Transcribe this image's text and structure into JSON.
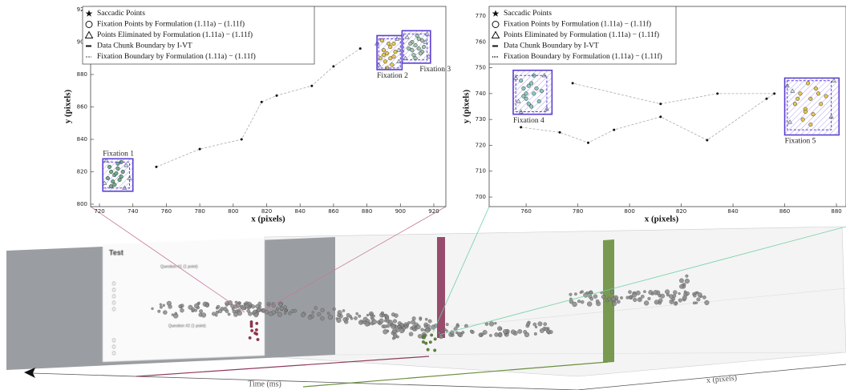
{
  "chart_data": [
    {
      "type": "scatter",
      "xlabel": "x (pixels)",
      "ylabel": "y (pixels)",
      "xlim": [
        714.7,
        927.2
      ],
      "xticks": [
        720,
        740,
        760,
        780,
        800,
        820,
        840,
        860,
        880,
        900,
        920
      ],
      "ylim": [
        798.5,
        922
      ],
      "yticks": [
        800,
        820,
        840,
        860,
        880,
        900,
        920
      ],
      "legend": [
        "Saccadic Points",
        "Fixation Points by Formulation (1.11a) − (1.11f)",
        "Points Eliminated by Formulation (1.11a) − (1.11f)",
        "Data Chunk Boundary by I-VT",
        "Fixation Boundary by Formulation (1.11a) − (1.11f)"
      ],
      "boundary_color": "#5b3fd0",
      "saccades": {
        "x": [
          754,
          780,
          805,
          817,
          826,
          847,
          860,
          876
        ],
        "y": [
          823,
          834,
          840,
          863,
          867,
          873,
          885,
          896
        ]
      },
      "clusters": [
        {
          "label": "Fixation 1",
          "color": "#6fae8a",
          "x": [
            725,
            727,
            729,
            731,
            733,
            728,
            730,
            732,
            726,
            734,
            729,
            731,
            727,
            733
          ],
          "y": [
            816,
            820,
            818,
            822,
            817,
            814,
            819,
            815,
            823,
            820,
            812,
            825,
            811,
            826
          ],
          "elim_x": [
            723,
            736,
            738,
            724,
            735
          ],
          "elim_y": [
            813,
            824,
            816,
            827,
            810
          ],
          "chunk": {
            "x": [
              722,
              740
            ],
            "y": [
              808,
              828
            ]
          },
          "boundary": {
            "x": [
              722,
              738
            ],
            "y": [
              810,
              826
            ]
          }
        },
        {
          "label": "Fixation 2",
          "color": "#e8c84a",
          "x": [
            888,
            890,
            892,
            894,
            896,
            891,
            893,
            895,
            889,
            897,
            892,
            890,
            894,
            896
          ],
          "y": [
            890,
            895,
            893,
            897,
            891,
            888,
            899,
            886,
            901,
            894,
            884,
            892,
            890,
            899
          ],
          "elim_x": [
            887,
            898,
            899,
            886,
            899
          ],
          "elim_y": [
            886,
            902,
            888,
            899,
            895
          ],
          "chunk": {
            "x": [
              886,
              901
            ],
            "y": [
              883,
              904
            ]
          },
          "boundary": {
            "x": [
              887,
              900
            ],
            "y": [
              884,
              902
            ]
          }
        },
        {
          "label": "Fixation 3",
          "color": "#9fc9a8",
          "x": [
            905,
            907,
            909,
            911,
            913,
            908,
            910,
            912,
            906,
            914,
            909,
            911,
            907,
            913
          ],
          "y": [
            896,
            900,
            898,
            902,
            894,
            892,
            904,
            893,
            899,
            897,
            890,
            896,
            895,
            901
          ],
          "elim_x": [
            903,
            916,
            917,
            904,
            915
          ],
          "elim_y": [
            890,
            905,
            891,
            903,
            900
          ],
          "chunk": {
            "x": [
              901,
              918
            ],
            "y": [
              887,
              907
            ]
          },
          "boundary": {
            "x": [
              902,
              916
            ],
            "y": [
              889,
              905
            ]
          }
        }
      ]
    },
    {
      "type": "scatter",
      "xlabel": "x (pixels)",
      "ylabel": "y (pixels)",
      "xlim": [
        745.7,
        883.7
      ],
      "xticks": [
        760,
        780,
        800,
        820,
        840,
        860,
        880
      ],
      "ylim": [
        696.3,
        773.7
      ],
      "yticks": [
        700,
        710,
        720,
        730,
        740,
        750,
        760,
        770
      ],
      "legend": [
        "Saccadic Points",
        "Fixation Points by Formulation (1.11a) − (1.11f)",
        "Points Eliminated by Formulation (1.11a) − (1.11f)",
        "Data Chunk Boundary by I-VT",
        "Fixation Boundary by Formulation (1.11a) − (1.11f)"
      ],
      "boundary_color": "#5b3fd0",
      "saccades": {
        "x": [
          758,
          773,
          784,
          794,
          812,
          830,
          853,
          856,
          834,
          812,
          778
        ],
        "y": [
          727,
          725,
          721,
          726,
          731,
          722,
          738,
          740,
          740,
          736,
          744
        ]
      },
      "clusters": [
        {
          "label": "Fixation 4",
          "color": "#8cc9c0",
          "x": [
            759,
            760,
            762,
            763,
            761,
            764,
            758,
            765,
            760,
            762,
            763,
            759,
            761,
            766
          ],
          "y": [
            742,
            738,
            744,
            740,
            736,
            742,
            745,
            737,
            740,
            735,
            747,
            739,
            743,
            741
          ],
          "elim_x": [
            756,
            768,
            757,
            767,
            758
          ],
          "elim_y": [
            746,
            734,
            737,
            747,
            733
          ],
          "chunk": {
            "x": [
              755,
              770
            ],
            "y": [
              732,
              749
            ]
          },
          "boundary": {
            "x": [
              756,
              768
            ],
            "y": [
              733,
              747
            ]
          }
        },
        {
          "label": "Fixation 5",
          "color": "#e8c84a",
          "x": [
            864,
            866,
            868,
            870,
            872,
            874,
            867,
            869,
            871,
            873,
            865,
            870,
            876,
            868
          ],
          "y": [
            736,
            740,
            734,
            738,
            742,
            736,
            730,
            744,
            732,
            740,
            738,
            728,
            739,
            733
          ],
          "elim_x": [
            861,
            878,
            862,
            879,
            863
          ],
          "elim_y": [
            743,
            731,
            729,
            745,
            741
          ],
          "chunk": {
            "x": [
              860,
              881
            ],
            "y": [
              724,
              746
            ]
          },
          "boundary": {
            "x": [
              861,
              878
            ],
            "y": [
              726,
              745
            ]
          }
        }
      ]
    }
  ],
  "scene": {
    "time_label": "Time (ms)",
    "x_label": "x (pixels)",
    "screen_title": "Test",
    "question_1": "Question #1 (1 point)",
    "question_2": "Question #2 (1 point)"
  }
}
